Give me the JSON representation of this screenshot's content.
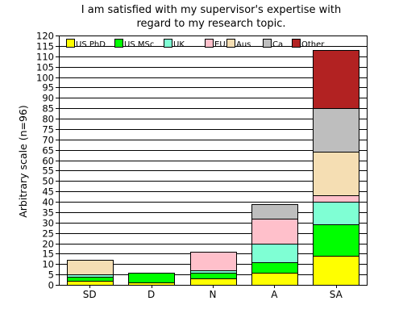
{
  "chart_data": {
    "type": "bar",
    "stacked": true,
    "title_lines": [
      "I am satisfied with my supervisor's expertise with",
      "regard to my research topic."
    ],
    "xlabel": "",
    "ylabel": "Arbitrary scale (n=96)",
    "ylim": [
      0,
      120
    ],
    "ytick_step": 5,
    "grid": true,
    "legend_position": "top-inside",
    "categories": [
      "SD",
      "D",
      "N",
      "A",
      "SA"
    ],
    "series": [
      {
        "name": "US PhD",
        "color": "#ffff00",
        "values": [
          2,
          1,
          3,
          6,
          14
        ]
      },
      {
        "name": "US MSc",
        "color": "#00ff00",
        "values": [
          2,
          5,
          3,
          5,
          15
        ]
      },
      {
        "name": "UK",
        "color": "#7fffd4",
        "values": [
          1,
          0,
          1,
          9,
          11
        ]
      },
      {
        "name": "EU",
        "color": "#ffc0cb",
        "values": [
          0,
          0,
          9,
          12,
          3
        ]
      },
      {
        "name": "Aus",
        "color": "#f5deb3",
        "values": [
          7,
          0,
          0,
          0,
          21
        ]
      },
      {
        "name": "Ca",
        "color": "#bebebe",
        "values": [
          0,
          0,
          0,
          7,
          21
        ]
      },
      {
        "name": "Other",
        "color": "#b22222",
        "values": [
          0,
          0,
          0,
          0,
          28
        ]
      }
    ]
  }
}
